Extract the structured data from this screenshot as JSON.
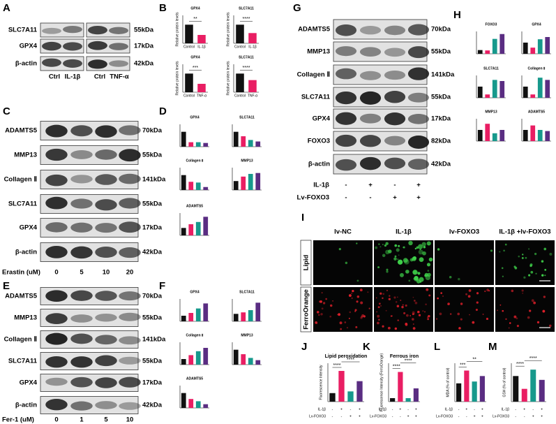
{
  "colors": [
    "#111111",
    "#e91e63",
    "#17998c",
    "#5a2d82"
  ],
  "treatments": [
    {
      "name": "IL-1β",
      "signs": [
        "-",
        "+",
        "-",
        "+"
      ]
    },
    {
      "name": "Lv-FOXO3",
      "signs": [
        "-",
        "-",
        "+",
        "+"
      ]
    }
  ],
  "panels": {
    "A": {
      "label": "A",
      "rows": [
        "SLC7A11",
        "GPX4",
        "β-actin"
      ],
      "kda": [
        "55kDa",
        "17kDa",
        "42kDa"
      ],
      "lanes": [
        "Ctrl",
        "IL-1β",
        "Ctrl",
        "TNF-α"
      ]
    },
    "B": {
      "label": "B",
      "charts": [
        {
          "title": "GPX4",
          "ylabel": "Relative protein levels",
          "categories": [
            "Control",
            "IL-1β"
          ],
          "values": [
            1,
            0.45
          ],
          "ylim": [
            0,
            1.5
          ],
          "sig": "**"
        },
        {
          "title": "SLC7A11",
          "ylabel": "Relative protein levels",
          "categories": [
            "Control",
            "IL-1β"
          ],
          "values": [
            1,
            0.55
          ],
          "ylim": [
            0,
            1.5
          ],
          "sig": "****"
        },
        {
          "title": "GPX4",
          "ylabel": "Relative protein levels",
          "categories": [
            "Control",
            "TNF-α"
          ],
          "values": [
            1,
            0.45
          ],
          "ylim": [
            0,
            1.5
          ],
          "sig": "***"
        },
        {
          "title": "SLC7A11",
          "ylabel": "Relative protein levels",
          "categories": [
            "Control",
            "TNF-α"
          ],
          "values": [
            1,
            0.65
          ],
          "ylim": [
            0,
            1.5
          ],
          "sig": "****"
        }
      ]
    },
    "C": {
      "label": "C",
      "rows": [
        "ADAMTS5",
        "MMP13",
        "Collagen Ⅱ",
        "SLC7A11",
        "GPX4",
        "β-actin"
      ],
      "kda": [
        "70kDa",
        "55kDa",
        "141kDa",
        "55kDa",
        "17kDa",
        "42kDa"
      ],
      "treatment": "Erastin (uM)",
      "lanes": [
        "0",
        "5",
        "10",
        "20"
      ]
    },
    "D": {
      "label": "D",
      "charts": [
        {
          "title": "GPX4",
          "values": [
            1,
            0.3,
            0.3,
            0.25
          ],
          "ylim": [
            0,
            1.5
          ]
        },
        {
          "title": "SLC7A11",
          "values": [
            1,
            0.7,
            0.45,
            0.35
          ],
          "ylim": [
            0,
            1.5
          ]
        },
        {
          "title": "Collagen Ⅱ",
          "values": [
            1,
            0.55,
            0.5,
            0.2
          ],
          "ylim": [
            0,
            1.5
          ]
        },
        {
          "title": "MMP13",
          "values": [
            1,
            1.5,
            1.8,
            1.9
          ],
          "ylim": [
            0,
            2.5
          ]
        },
        {
          "title": "ADAMTS5",
          "values": [
            1,
            1.5,
            1.8,
            2.5
          ],
          "ylim": [
            0,
            3
          ]
        }
      ]
    },
    "E": {
      "label": "E",
      "rows": [
        "ADAMTS5",
        "MMP13",
        "Collagen Ⅱ",
        "SLC7A11",
        "GPX4",
        "β-actin"
      ],
      "kda": [
        "70kDa",
        "55kDa",
        "141kDa",
        "55kDa",
        "17kDa",
        "42kDa"
      ],
      "treatment": "Fer-1 (uM)",
      "lanes": [
        "0",
        "1",
        "5",
        "10"
      ]
    },
    "F": {
      "label": "F",
      "charts": [
        {
          "title": "GPX4",
          "values": [
            1,
            1.5,
            2.3,
            3.2
          ],
          "ylim": [
            0,
            4
          ]
        },
        {
          "title": "SLC7A11",
          "values": [
            1,
            1.2,
            1.5,
            2.5
          ],
          "ylim": [
            0,
            3
          ]
        },
        {
          "title": "Collagen Ⅱ",
          "values": [
            1,
            1.7,
            2.4,
            3
          ],
          "ylim": [
            0,
            4
          ]
        },
        {
          "title": "MMP13",
          "values": [
            1,
            0.7,
            0.45,
            0.3
          ],
          "ylim": [
            0,
            1.5
          ]
        },
        {
          "title": "ADAMTS5",
          "values": [
            1,
            0.6,
            0.45,
            0.25
          ],
          "ylim": [
            0,
            1.5
          ]
        }
      ]
    },
    "G": {
      "label": "G",
      "rows": [
        "ADAMTS5",
        "MMP13",
        "Collagen Ⅱ",
        "SLC7A11",
        "GPX4",
        "FOXO3",
        "β-actin"
      ],
      "kda": [
        "70kDa",
        "55kDa",
        "141kDa",
        "55kDa",
        "17kDa",
        "82kDa",
        "42kDa"
      ]
    },
    "H": {
      "label": "H",
      "charts": [
        {
          "title": "FOXO3",
          "values": [
            1,
            0.9,
            4,
            5.3
          ],
          "ylim": [
            0,
            6
          ]
        },
        {
          "title": "GPX4",
          "values": [
            1,
            0.55,
            1.3,
            1.5
          ],
          "ylim": [
            0,
            2
          ]
        },
        {
          "title": "SLC7A11",
          "values": [
            1,
            0.3,
            1.6,
            1.5
          ],
          "ylim": [
            0,
            2
          ]
        },
        {
          "title": "Collagen Ⅱ",
          "values": [
            1,
            0.3,
            1.8,
            1.6
          ],
          "ylim": [
            0,
            2
          ]
        },
        {
          "title": "MMP13",
          "values": [
            1,
            1.55,
            0.7,
            1
          ],
          "ylim": [
            0,
            2
          ]
        },
        {
          "title": "ADAMTS5",
          "values": [
            1,
            1.4,
            1,
            0.9
          ],
          "ylim": [
            0,
            2
          ]
        }
      ]
    },
    "I": {
      "label": "I",
      "columns": [
        "lv-NC",
        "IL-1β",
        "lv-FOXO3",
        "IL-1β +lv-FOXO3"
      ],
      "rows": [
        "Lipid",
        "FerroOrange"
      ]
    },
    "J": {
      "label": "J",
      "title": "Lipid peroxidation",
      "ylabel": "Fluorescence Intensity",
      "values": [
        1,
        3.6,
        1.2,
        2.4
      ],
      "ylim": [
        0,
        4.5
      ],
      "sig": [
        "****",
        "****"
      ]
    },
    "K": {
      "label": "K",
      "title": "Ferrous iron",
      "ylabel": "Fluorescence Intensity (FerroOrange)",
      "values": [
        1,
        8.5,
        1,
        3.8
      ],
      "ylim": [
        0,
        11
      ],
      "sig": [
        "****",
        "****"
      ]
    },
    "L": {
      "label": "L",
      "ylabel": "MDA (% of control)",
      "values": [
        100,
        170,
        110,
        140
      ],
      "ylim": [
        0,
        210
      ],
      "sig": [
        "***",
        "**"
      ]
    },
    "M": {
      "label": "M",
      "ylabel": "GSH (% of control)",
      "values": [
        1,
        0.5,
        1.25,
        0.85
      ],
      "ylim": [
        0,
        1.5
      ],
      "sig": [
        "****",
        "****"
      ]
    }
  }
}
